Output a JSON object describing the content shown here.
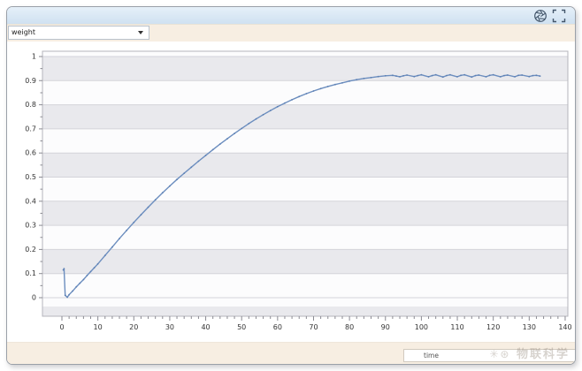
{
  "toolbar": {
    "series_selector_value": "weight"
  },
  "header_icons": {
    "aperture_label": "aperture",
    "fullscreen_label": "fullscreen"
  },
  "bottom": {
    "axis_title_box_value": "time"
  },
  "watermark": {
    "symbols": "✳⊛",
    "text": "物联科学"
  },
  "colors": {
    "line": "#6c8ebf",
    "marker": "#5d80b4",
    "band_gray": "#e9e9ed",
    "band_white": "#fcfcfd",
    "gridline": "#d4d4da",
    "plot_border": "#b5b5bc",
    "tick": "#8a8a92",
    "axis_text": "#333333",
    "top_strip": "#d8e6f4",
    "bar_beige": "#f7eee2",
    "icon": "#43566b"
  },
  "chart_data": {
    "type": "line",
    "title": "",
    "xlabel": "time",
    "ylabel": "",
    "legend": "none",
    "grid": "horizontal interlaced bands, major y gridlines every 0.1",
    "xlim": [
      -5.5,
      141
    ],
    "ylim": [
      -0.077,
      1.02
    ],
    "x_ticks": [
      0,
      10,
      20,
      30,
      40,
      50,
      60,
      70,
      80,
      90,
      100,
      110,
      120,
      130,
      140
    ],
    "y_ticks": [
      0,
      0.1,
      0.2,
      0.3,
      0.4,
      0.5,
      0.6,
      0.7,
      0.8,
      0.9,
      1
    ],
    "y_tick_labels": [
      "0",
      "0.1",
      "0.2",
      "0.3",
      "0.4",
      "0.5",
      "0.6",
      "0.7",
      "0.8",
      "0.9",
      "1"
    ],
    "series": [
      {
        "name": "weight",
        "color": "#6c8ebf",
        "description": "starts near 0.12, drops to 0 at x≈1, rises smoothly and saturates at ≈0.92 from x≈85 onward with small ripples until x≈133",
        "points": [
          [
            0.4,
            0.115
          ],
          [
            0.6,
            0.12
          ],
          [
            0.9,
            0.01
          ],
          [
            1.5,
            0.002
          ],
          [
            2,
            0.012
          ],
          [
            3,
            0.028
          ],
          [
            4,
            0.045
          ],
          [
            5,
            0.06
          ],
          [
            6,
            0.075
          ],
          [
            7,
            0.092
          ],
          [
            8,
            0.108
          ],
          [
            9,
            0.124
          ],
          [
            10,
            0.14
          ],
          [
            12,
            0.175
          ],
          [
            14,
            0.21
          ],
          [
            16,
            0.245
          ],
          [
            18,
            0.279
          ],
          [
            20,
            0.312
          ],
          [
            22,
            0.344
          ],
          [
            24,
            0.375
          ],
          [
            26,
            0.406
          ],
          [
            28,
            0.435
          ],
          [
            30,
            0.463
          ],
          [
            32,
            0.49
          ],
          [
            34,
            0.516
          ],
          [
            36,
            0.541
          ],
          [
            38,
            0.566
          ],
          [
            40,
            0.59
          ],
          [
            42,
            0.614
          ],
          [
            44,
            0.637
          ],
          [
            46,
            0.659
          ],
          [
            48,
            0.681
          ],
          [
            50,
            0.702
          ],
          [
            52,
            0.722
          ],
          [
            54,
            0.741
          ],
          [
            56,
            0.759
          ],
          [
            58,
            0.776
          ],
          [
            60,
            0.792
          ],
          [
            62,
            0.807
          ],
          [
            64,
            0.821
          ],
          [
            66,
            0.834
          ],
          [
            68,
            0.846
          ],
          [
            70,
            0.857
          ],
          [
            72,
            0.867
          ],
          [
            74,
            0.876
          ],
          [
            76,
            0.884
          ],
          [
            78,
            0.891
          ],
          [
            80,
            0.898
          ],
          [
            82,
            0.904
          ],
          [
            84,
            0.909
          ],
          [
            86,
            0.913
          ],
          [
            88,
            0.917
          ],
          [
            90,
            0.92
          ],
          [
            92,
            0.922
          ],
          [
            93,
            0.919
          ],
          [
            94,
            0.916
          ],
          [
            95,
            0.92
          ],
          [
            96,
            0.923
          ],
          [
            98,
            0.917
          ],
          [
            99,
            0.921
          ],
          [
            100,
            0.924
          ],
          [
            102,
            0.916
          ],
          [
            103,
            0.921
          ],
          [
            104,
            0.924
          ],
          [
            106,
            0.915
          ],
          [
            107,
            0.921
          ],
          [
            108,
            0.924
          ],
          [
            110,
            0.916
          ],
          [
            111,
            0.922
          ],
          [
            112,
            0.924
          ],
          [
            114,
            0.915
          ],
          [
            115,
            0.921
          ],
          [
            116,
            0.923
          ],
          [
            118,
            0.916
          ],
          [
            119,
            0.922
          ],
          [
            120,
            0.924
          ],
          [
            122,
            0.916
          ],
          [
            123,
            0.921
          ],
          [
            124,
            0.923
          ],
          [
            126,
            0.916
          ],
          [
            127,
            0.922
          ],
          [
            128,
            0.923
          ],
          [
            130,
            0.917
          ],
          [
            131,
            0.921
          ],
          [
            132,
            0.922
          ],
          [
            133,
            0.919
          ]
        ]
      }
    ]
  }
}
